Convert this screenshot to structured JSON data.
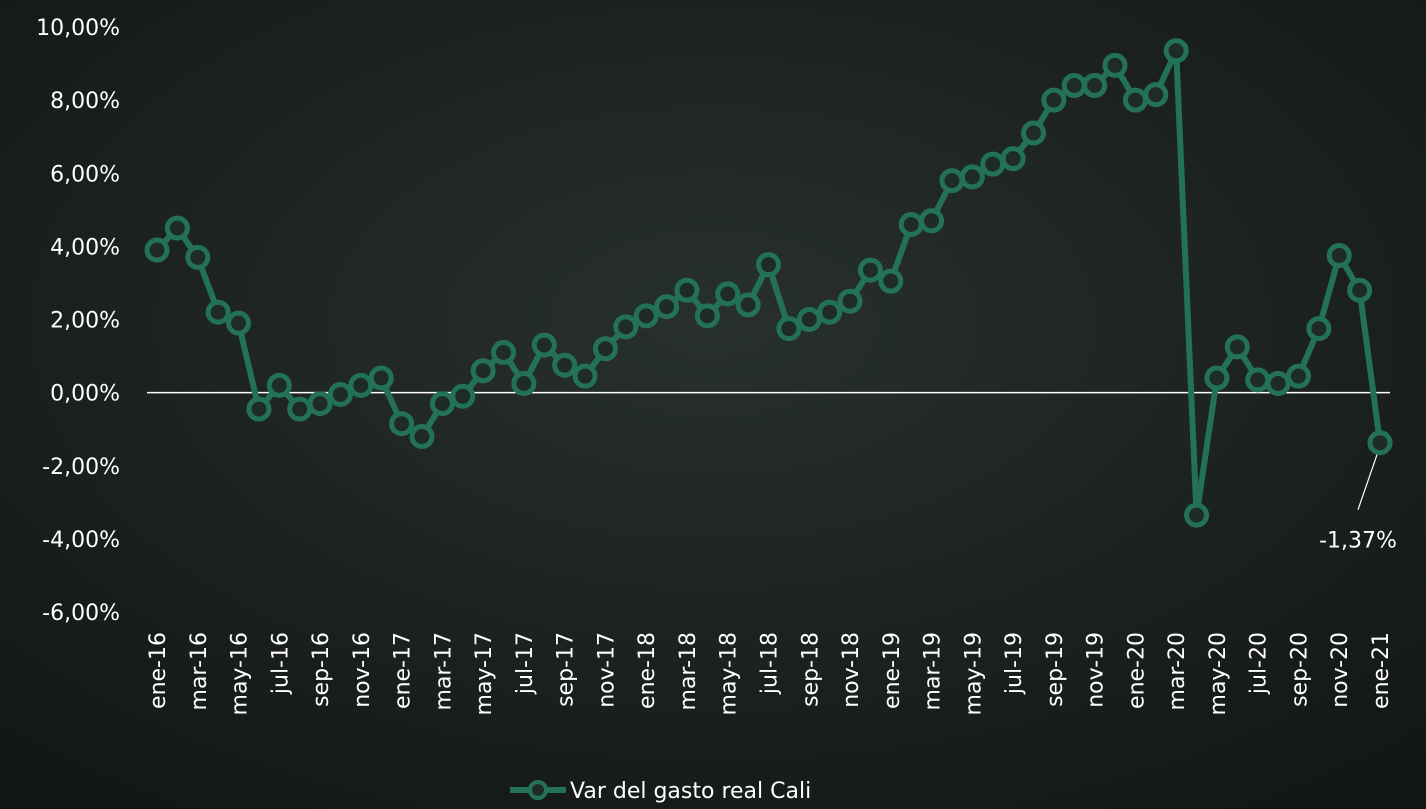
{
  "chart_data": {
    "type": "line",
    "categories": [
      "ene-16",
      null,
      "mar-16",
      null,
      "may-16",
      null,
      "jul-16",
      null,
      "sep-16",
      null,
      "nov-16",
      null,
      "ene-17",
      null,
      "mar-17",
      null,
      "may-17",
      null,
      "jul-17",
      null,
      "sep-17",
      null,
      "nov-17",
      null,
      "ene-18",
      null,
      "mar-18",
      null,
      "may-18",
      null,
      "jul-18",
      null,
      "sep-18",
      null,
      "nov-18",
      null,
      "ene-19",
      null,
      "mar-19",
      null,
      "may-19",
      null,
      "jul-19",
      null,
      "sep-19",
      null,
      "nov-19",
      null,
      "ene-20",
      null,
      "mar-20",
      null,
      "may-20",
      null,
      "jul-20",
      null,
      "sep-20",
      null,
      "nov-20",
      null,
      "ene-21"
    ],
    "series": [
      {
        "name": "Var del gasto real Cali",
        "color": "#237257",
        "values": [
          3.9,
          4.5,
          3.7,
          2.2,
          1.9,
          -0.45,
          0.2,
          -0.45,
          -0.3,
          -0.05,
          0.2,
          0.4,
          -0.85,
          -1.2,
          -0.3,
          -0.1,
          0.6,
          1.1,
          0.25,
          1.3,
          0.75,
          0.45,
          1.2,
          1.8,
          2.1,
          2.35,
          2.8,
          2.1,
          2.7,
          2.4,
          3.5,
          1.75,
          2.0,
          2.2,
          2.5,
          3.35,
          3.05,
          4.6,
          4.7,
          5.8,
          5.9,
          6.25,
          6.4,
          7.1,
          8.0,
          8.4,
          8.4,
          8.95,
          8.0,
          8.15,
          9.35,
          -3.35,
          0.4,
          1.25,
          0.35,
          0.25,
          0.45,
          1.75,
          3.75,
          2.8,
          -1.37
        ],
        "value_labels": [
          null,
          null,
          null,
          null,
          null,
          null,
          null,
          null,
          null,
          null,
          null,
          null,
          null,
          null,
          null,
          null,
          null,
          null,
          null,
          null,
          null,
          null,
          null,
          null,
          null,
          null,
          null,
          null,
          null,
          null,
          null,
          null,
          null,
          null,
          null,
          null,
          null,
          null,
          null,
          null,
          null,
          null,
          null,
          null,
          null,
          null,
          null,
          null,
          null,
          null,
          null,
          null,
          null,
          null,
          null,
          null,
          null,
          null,
          null,
          null,
          "-1,37%"
        ]
      }
    ],
    "ylim": [
      -6,
      10
    ],
    "yticks": [
      {
        "value": -6,
        "label": "-6,00%"
      },
      {
        "value": -4,
        "label": "-4,00%"
      },
      {
        "value": -2,
        "label": "-2,00%"
      },
      {
        "value": 0,
        "label": "0,00%"
      },
      {
        "value": 2,
        "label": "2,00%"
      },
      {
        "value": 4,
        "label": "4,00%"
      },
      {
        "value": 6,
        "label": "6,00%"
      },
      {
        "value": 8,
        "label": "8,00%"
      },
      {
        "value": 10,
        "label": "10,00%"
      }
    ],
    "legend": "bottom"
  }
}
